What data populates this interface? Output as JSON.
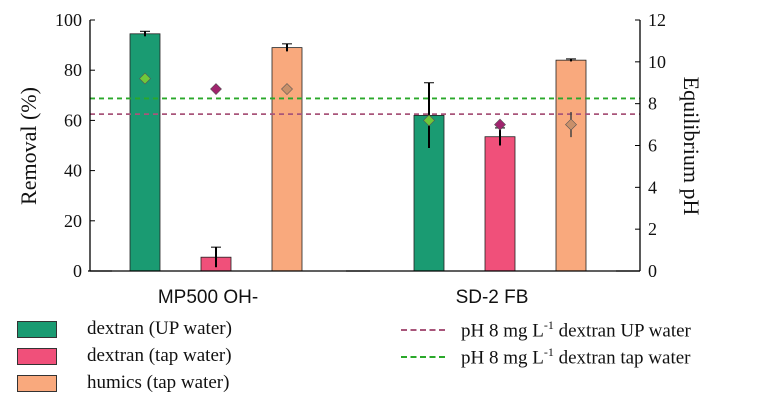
{
  "chart_data": {
    "type": "bar",
    "categories": [
      "MP500 OH-",
      "SD-2 FB"
    ],
    "ylabel_left": "Removal (%)",
    "ylabel_right": "Equilibrium pH",
    "ylim_left": [
      0,
      100
    ],
    "yticks_left": [
      0,
      20,
      40,
      60,
      80,
      100
    ],
    "ylim_right": [
      0,
      12
    ],
    "yticks_right": [
      0,
      2,
      4,
      6,
      8,
      10,
      12
    ],
    "grid": false,
    "series": [
      {
        "name": "dextran (UP water)",
        "color": "#1a9b72",
        "values": [
          94.5,
          62
        ],
        "errors": [
          1,
          13
        ],
        "ph": [
          9.2,
          7.2
        ],
        "ph_errors": [
          0,
          0
        ]
      },
      {
        "name": "dextran (tap water)",
        "color": "#f0507a",
        "values": [
          5.5,
          53.5
        ],
        "errors": [
          4,
          3.5
        ],
        "ph": [
          8.7,
          7.0
        ],
        "ph_errors": [
          0,
          0
        ]
      },
      {
        "name": "humics (tap water)",
        "color": "#f9a97d",
        "values": [
          89,
          84
        ],
        "errors": [
          1.5,
          0.5
        ],
        "ph": [
          8.7,
          7.0
        ],
        "ph_errors": [
          0,
          0.6
        ]
      }
    ],
    "reference_lines": [
      {
        "name": "pH 8 mg L-1 dextran UP water",
        "color": "#a8557a",
        "ph": 7.5
      },
      {
        "name": "pH 8 mg L-1 dextran tap water",
        "color": "#2aa82a",
        "ph": 8.25
      }
    ],
    "ph_marker_colors": {
      "dextran (UP water)": "#6fc83a",
      "dextran (tap water)": "#a0256e",
      "humics (tap water)": "#c9906a"
    }
  },
  "legend": {
    "items": [
      {
        "label": "dextran (UP water)",
        "color": "#1a9b72"
      },
      {
        "label": "dextran (tap water)",
        "color": "#f0507a"
      },
      {
        "label": "humics (tap water)",
        "color": "#f9a97d"
      }
    ],
    "lines": [
      {
        "pre": "pH 8 mg L",
        "sup": "-1",
        "post": " dextran UP water",
        "color": "#a8557a"
      },
      {
        "pre": "pH 8 mg L",
        "sup": "-1",
        "post": " dextran tap water",
        "color": "#2aa82a"
      }
    ]
  }
}
